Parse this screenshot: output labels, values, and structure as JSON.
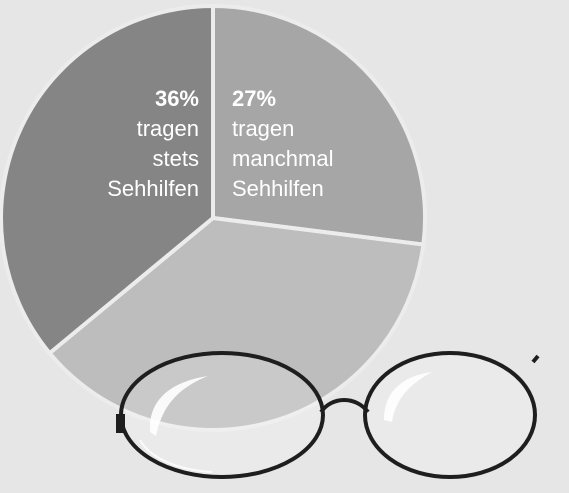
{
  "chart_data": {
    "type": "pie",
    "slices": [
      {
        "value": 27,
        "pct_label": "27%",
        "lines": [
          "tragen",
          "manchmal",
          "Sehhilfen"
        ],
        "color": "#a6a6a6"
      },
      {
        "value": 37,
        "pct_label": "",
        "lines": [],
        "color": "#bdbdbd"
      },
      {
        "value": 36,
        "pct_label": "36%",
        "lines": [
          "tragen",
          "stets",
          "Sehhilfen"
        ],
        "color": "#858585"
      }
    ]
  },
  "colors": {
    "background": "#e6e6e6",
    "separator": "#ececec",
    "glasses_frame": "#1e1e1e"
  },
  "decoration": {
    "icon": "eyeglasses-icon"
  }
}
